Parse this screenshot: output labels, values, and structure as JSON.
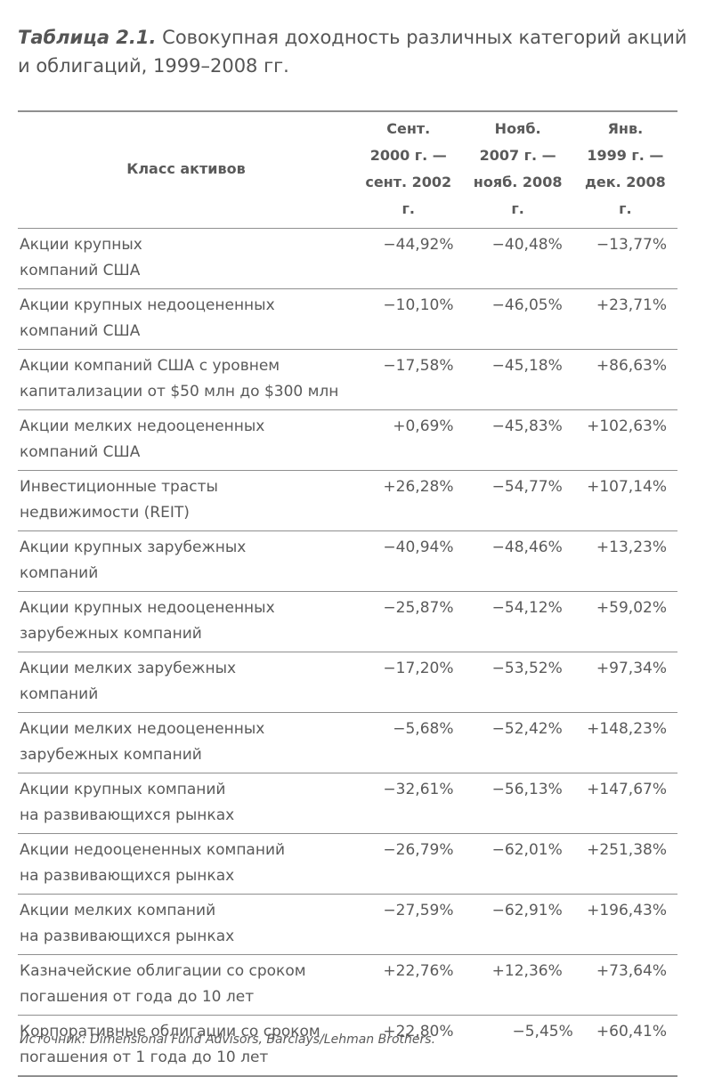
{
  "caption": {
    "label": "Таблица 2.1.",
    "title": "Совокупная доходность различных категорий акций и облигаций, 1999–2008 гг."
  },
  "table": {
    "headers": {
      "asset": "Класс активов",
      "col1": "Сент.\n2000 г. —\nсент. 2002 г.",
      "col2": "Нояб.\n2007 г. —\nнояб. 2008 г.",
      "col3": "Янв.\n1999 г. —\nдек. 2008 г."
    },
    "rows": [
      {
        "asset": "Акции крупных\nкомпаний США",
        "c1": "−44,92%",
        "c2": "−40,48%",
        "c3": "−13,77%"
      },
      {
        "asset": "Акции крупных недооцененных\nкомпаний США",
        "c1": "−10,10%",
        "c2": "−46,05%",
        "c3": "+23,71%"
      },
      {
        "asset": "Акции компаний США с уровнем\nкапитализации от $50 млн до $300 млн",
        "c1": "−17,58%",
        "c2": "−45,18%",
        "c3": "+86,63%"
      },
      {
        "asset": "Акции мелких недооцененных\nкомпаний США",
        "c1": "+0,69%",
        "c2": "−45,83%",
        "c3": "+102,63%"
      },
      {
        "asset": "Инвестиционные трасты\nнедвижимости (REIT)",
        "c1": "+26,28%",
        "c2": "−54,77%",
        "c3": "+107,14%"
      },
      {
        "asset": "Акции крупных зарубежных\nкомпаний",
        "c1": "−40,94%",
        "c2": "−48,46%",
        "c3": "+13,23%"
      },
      {
        "asset": "Акции крупных недооцененных\nзарубежных компаний",
        "c1": "−25,87%",
        "c2": "−54,12%",
        "c3": "+59,02%"
      },
      {
        "asset": "Акции мелких зарубежных\nкомпаний",
        "c1": "−17,20%",
        "c2": "−53,52%",
        "c3": "+97,34%"
      },
      {
        "asset": "Акции мелких недооцененных\nзарубежных компаний",
        "c1": "−5,68%",
        "c2": "−52,42%",
        "c3": "+148,23%"
      },
      {
        "asset": "Акции крупных компаний\nна развивающихся рынках",
        "c1": "−32,61%",
        "c2": "−56,13%",
        "c3": "+147,67%"
      },
      {
        "asset": "Акции недооцененных компаний\nна развивающихся рынках",
        "c1": "−26,79%",
        "c2": "−62,01%",
        "c3": "+251,38%"
      },
      {
        "asset": "Акции мелких компаний\nна развивающихся рынках",
        "c1": "−27,59%",
        "c2": "−62,91%",
        "c3": "+196,43%"
      },
      {
        "asset": "Казначейские облигации со сроком\nпогашения от года до 10 лет",
        "c1": "+22,76%",
        "c2": "+12,36%",
        "c3": "+73,64%"
      },
      {
        "asset": "Корпоративные облигации со сроком\nпогашения от 1 года до 10 лет",
        "c1": "+22,80%",
        "c2": "−5,45%",
        "c3": "+60,41%"
      }
    ]
  },
  "source": "Источник: Dimensional Fund Advisors, Barclays/Lehman Brothers."
}
